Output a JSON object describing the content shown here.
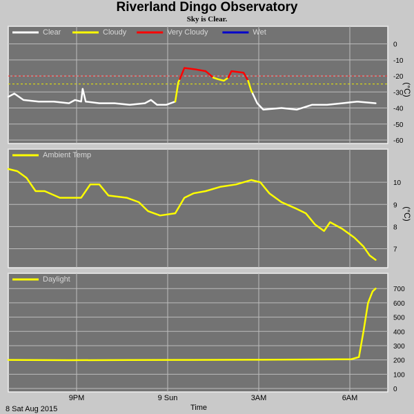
{
  "header": {
    "title": "Riverland Dingo Observatory",
    "subtitle": "Sky is Clear."
  },
  "chart_data": [
    {
      "type": "line",
      "title": "",
      "ylabel": "(°C)",
      "ylim": [
        -60,
        5
      ],
      "yticks": [
        0,
        -10,
        -20,
        -30,
        -40,
        -50,
        -60
      ],
      "thresholds": [
        {
          "value": -20,
          "color": "#ff2020"
        },
        {
          "value": -25,
          "color": "#f0f000"
        }
      ],
      "legend": [
        {
          "name": "Clear",
          "color": "#ffffff"
        },
        {
          "name": "Cloudy",
          "color": "#ffff00"
        },
        {
          "name": "Very Cloudy",
          "color": "#ff0000"
        },
        {
          "name": "Wet",
          "color": "#0000cc"
        }
      ],
      "series": [
        {
          "name": "Clear",
          "color": "#ffffff",
          "points": [
            [
              0.0,
              -33
            ],
            [
              0.2,
              -31
            ],
            [
              0.5,
              -35
            ],
            [
              1.0,
              -36
            ],
            [
              1.5,
              -36
            ],
            [
              2.0,
              -37
            ],
            [
              2.2,
              -35
            ],
            [
              2.4,
              -36
            ],
            [
              2.45,
              -28
            ],
            [
              2.55,
              -36
            ],
            [
              3.0,
              -37
            ],
            [
              3.5,
              -37
            ],
            [
              4.0,
              -38
            ],
            [
              4.5,
              -37
            ],
            [
              4.7,
              -35
            ],
            [
              4.9,
              -38
            ],
            [
              5.2,
              -38
            ],
            [
              5.5,
              -36
            ]
          ]
        },
        {
          "name": "Cloudy",
          "color": "#ffff00",
          "points": [
            [
              5.5,
              -36
            ],
            [
              5.6,
              -24
            ],
            [
              5.65,
              -22
            ]
          ]
        },
        {
          "name": "Very Cloudy",
          "color": "#ff0000",
          "points": [
            [
              5.65,
              -22
            ],
            [
              5.8,
              -15
            ],
            [
              6.2,
              -16
            ],
            [
              6.5,
              -17
            ],
            [
              6.75,
              -21
            ]
          ]
        },
        {
          "name": "Cloudy",
          "color": "#ffff00",
          "points": [
            [
              6.75,
              -21
            ],
            [
              6.9,
              -22
            ],
            [
              7.1,
              -23
            ],
            [
              7.25,
              -21
            ]
          ]
        },
        {
          "name": "Very Cloudy",
          "color": "#ff0000",
          "points": [
            [
              7.25,
              -21
            ],
            [
              7.35,
              -17
            ],
            [
              7.75,
              -18
            ],
            [
              7.9,
              -23
            ]
          ]
        },
        {
          "name": "Cloudy",
          "color": "#ffff00",
          "points": [
            [
              7.9,
              -23
            ],
            [
              8.0,
              -29
            ],
            [
              8.05,
              -31
            ]
          ]
        },
        {
          "name": "Clear",
          "color": "#ffffff",
          "points": [
            [
              8.05,
              -31
            ],
            [
              8.2,
              -37
            ],
            [
              8.4,
              -41
            ],
            [
              9.0,
              -40
            ],
            [
              9.5,
              -41
            ],
            [
              10.0,
              -38
            ],
            [
              10.5,
              -38
            ],
            [
              11.0,
              -37
            ],
            [
              11.5,
              -36
            ],
            [
              12.1,
              -37
            ]
          ]
        }
      ]
    },
    {
      "type": "line",
      "title": "",
      "ylabel": "(°C)",
      "ylim": [
        6.3,
        11
      ],
      "yticks": [
        10,
        9,
        8,
        7
      ],
      "legend": [
        {
          "name": "Ambient Temp",
          "color": "#ffff00"
        }
      ],
      "series": [
        {
          "name": "Ambient Temp",
          "color": "#ffff00",
          "points": [
            [
              0.0,
              10.6
            ],
            [
              0.3,
              10.5
            ],
            [
              0.6,
              10.2
            ],
            [
              0.9,
              9.6
            ],
            [
              1.2,
              9.6
            ],
            [
              1.7,
              9.3
            ],
            [
              2.4,
              9.3
            ],
            [
              2.7,
              9.9
            ],
            [
              3.0,
              9.9
            ],
            [
              3.3,
              9.4
            ],
            [
              3.9,
              9.3
            ],
            [
              4.3,
              9.1
            ],
            [
              4.6,
              8.7
            ],
            [
              5.0,
              8.5
            ],
            [
              5.5,
              8.6
            ],
            [
              5.8,
              9.3
            ],
            [
              6.1,
              9.5
            ],
            [
              6.5,
              9.6
            ],
            [
              7.0,
              9.8
            ],
            [
              7.5,
              9.9
            ],
            [
              8.0,
              10.1
            ],
            [
              8.3,
              10.0
            ],
            [
              8.6,
              9.5
            ],
            [
              9.0,
              9.1
            ],
            [
              9.5,
              8.8
            ],
            [
              9.8,
              8.6
            ],
            [
              10.1,
              8.1
            ],
            [
              10.4,
              7.8
            ],
            [
              10.6,
              8.2
            ],
            [
              11.0,
              7.9
            ],
            [
              11.4,
              7.5
            ],
            [
              11.7,
              7.1
            ],
            [
              11.9,
              6.7
            ],
            [
              12.1,
              6.5
            ]
          ]
        }
      ]
    },
    {
      "type": "line",
      "title": "",
      "xlabel": "Time",
      "ylim": [
        0,
        730
      ],
      "yticks": [
        700,
        600,
        500,
        400,
        300,
        200,
        100,
        0
      ],
      "xtick_labels": [
        "9PM",
        "9 Sun",
        "3AM",
        "6AM"
      ],
      "date_label": "8 Sat Aug 2015",
      "legend": [
        {
          "name": "Daylight",
          "color": "#ffff00"
        }
      ],
      "series": [
        {
          "name": "Daylight",
          "color": "#ffff00",
          "points": [
            [
              0.0,
              200
            ],
            [
              2.0,
              198
            ],
            [
              4.0,
              199
            ],
            [
              6.0,
              200
            ],
            [
              8.0,
              201
            ],
            [
              10.0,
              203
            ],
            [
              11.3,
              205
            ],
            [
              11.55,
              220
            ],
            [
              11.7,
              400
            ],
            [
              11.85,
              600
            ],
            [
              12.0,
              680
            ],
            [
              12.1,
              700
            ]
          ]
        }
      ]
    }
  ]
}
